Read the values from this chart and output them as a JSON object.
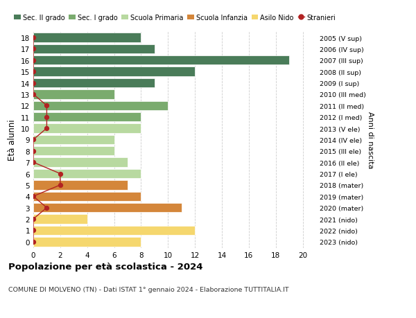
{
  "ages": [
    18,
    17,
    16,
    15,
    14,
    13,
    12,
    11,
    10,
    9,
    8,
    7,
    6,
    5,
    4,
    3,
    2,
    1,
    0
  ],
  "right_labels": [
    "2005 (V sup)",
    "2006 (IV sup)",
    "2007 (III sup)",
    "2008 (II sup)",
    "2009 (I sup)",
    "2010 (III med)",
    "2011 (II med)",
    "2012 (I med)",
    "2013 (V ele)",
    "2014 (IV ele)",
    "2015 (III ele)",
    "2016 (II ele)",
    "2017 (I ele)",
    "2018 (mater)",
    "2019 (mater)",
    "2020 (mater)",
    "2021 (nido)",
    "2022 (nido)",
    "2023 (nido)"
  ],
  "bar_values": [
    8,
    9,
    19,
    12,
    9,
    6,
    10,
    8,
    8,
    6,
    6,
    7,
    8,
    7,
    8,
    11,
    4,
    12,
    8
  ],
  "bar_colors": [
    "#4a7c59",
    "#4a7c59",
    "#4a7c59",
    "#4a7c59",
    "#4a7c59",
    "#7aab6e",
    "#7aab6e",
    "#7aab6e",
    "#b8d9a0",
    "#b8d9a0",
    "#b8d9a0",
    "#b8d9a0",
    "#b8d9a0",
    "#d4863a",
    "#d4863a",
    "#d4863a",
    "#f5d76e",
    "#f5d76e",
    "#f5d76e"
  ],
  "stranieri_values": [
    0,
    0,
    0,
    0,
    0,
    0,
    1,
    1,
    1,
    0,
    0,
    0,
    2,
    2,
    0,
    1,
    0,
    0,
    0
  ],
  "xlim": [
    0,
    21
  ],
  "xticks": [
    0,
    2,
    4,
    6,
    8,
    10,
    12,
    14,
    16,
    18,
    20
  ],
  "title": "Popolazione per età scolastica - 2024",
  "subtitle": "COMUNE DI MOLVENO (TN) - Dati ISTAT 1° gennaio 2024 - Elaborazione TUTTITALIA.IT",
  "ylabel_left": "Età alunni",
  "ylabel_right": "Anni di nascita",
  "legend_items": [
    {
      "label": "Sec. II grado",
      "color": "#4a7c59"
    },
    {
      "label": "Sec. I grado",
      "color": "#7aab6e"
    },
    {
      "label": "Scuola Primaria",
      "color": "#b8d9a0"
    },
    {
      "label": "Scuola Infanzia",
      "color": "#d4863a"
    },
    {
      "label": "Asilo Nido",
      "color": "#f5d76e"
    },
    {
      "label": "Stranieri",
      "color": "#b22222"
    }
  ],
  "bg_color": "#ffffff",
  "grid_color": "#cccccc",
  "stranieri_line_color": "#b22222",
  "stranieri_dot_color": "#b22222"
}
